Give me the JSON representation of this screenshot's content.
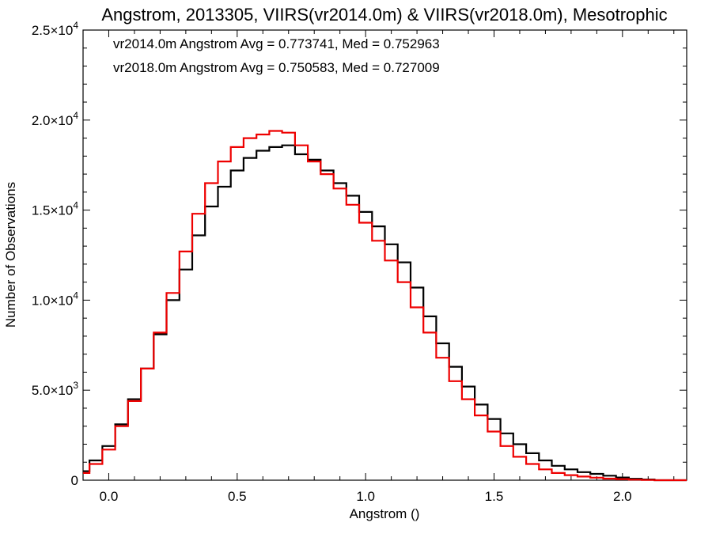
{
  "chart_data": {
    "type": "line",
    "title": "Angstrom, 2013305, VIIRS(vr2014.0m) & VIIRS(vr2018.0m), Mesotrophic",
    "xlabel": "Angstrom ()",
    "ylabel": "Number of Observations",
    "xlim": [
      -0.1,
      2.25
    ],
    "ylim": [
      0,
      25000
    ],
    "x_ticks": [
      0.0,
      0.5,
      1.0,
      1.5,
      2.0
    ],
    "x_tick_labels": [
      "0.0",
      "0.5",
      "1.0",
      "1.5",
      "2.0"
    ],
    "y_ticks": [
      0,
      5000,
      10000,
      15000,
      20000,
      25000
    ],
    "y_tick_labels": [
      {
        "mantissa": "0",
        "exp": ""
      },
      {
        "mantissa": "5.0×10",
        "exp": "3"
      },
      {
        "mantissa": "1.0×10",
        "exp": "4"
      },
      {
        "mantissa": "1.5×10",
        "exp": "4"
      },
      {
        "mantissa": "2.0×10",
        "exp": "4"
      },
      {
        "mantissa": "2.5×10",
        "exp": "4"
      }
    ],
    "grid": false,
    "legend_position": "top-left",
    "series": [
      {
        "name": "vr2014.0m",
        "legend_text": "vr2014.0m Angstrom Avg = 0.773741, Med = 0.752963",
        "color": "#000000",
        "x": [
          -0.1,
          -0.05,
          0.0,
          0.05,
          0.1,
          0.15,
          0.2,
          0.25,
          0.3,
          0.35,
          0.4,
          0.45,
          0.5,
          0.55,
          0.6,
          0.65,
          0.7,
          0.75,
          0.8,
          0.85,
          0.9,
          0.95,
          1.0,
          1.05,
          1.1,
          1.15,
          1.2,
          1.25,
          1.3,
          1.35,
          1.4,
          1.45,
          1.5,
          1.55,
          1.6,
          1.65,
          1.7,
          1.75,
          1.8,
          1.85,
          1.9,
          1.95,
          2.0,
          2.05,
          2.1,
          2.15,
          2.2,
          2.25
        ],
        "y": [
          500,
          1100,
          1900,
          3100,
          4500,
          6200,
          8100,
          10000,
          11700,
          13600,
          15200,
          16300,
          17200,
          17900,
          18300,
          18500,
          18600,
          18100,
          17800,
          17200,
          16500,
          15800,
          14900,
          14100,
          13100,
          12100,
          10700,
          9100,
          7600,
          6300,
          5200,
          4200,
          3400,
          2600,
          2000,
          1500,
          1100,
          800,
          600,
          450,
          350,
          250,
          150,
          80,
          40,
          0,
          0,
          0
        ]
      },
      {
        "name": "vr2018.0m",
        "legend_text": "vr2018.0m Angstrom Avg = 0.750583, Med = 0.727009",
        "color": "#ee0000",
        "x": [
          -0.1,
          -0.05,
          0.0,
          0.05,
          0.1,
          0.15,
          0.2,
          0.25,
          0.3,
          0.35,
          0.4,
          0.45,
          0.5,
          0.55,
          0.6,
          0.65,
          0.7,
          0.75,
          0.8,
          0.85,
          0.9,
          0.95,
          1.0,
          1.05,
          1.1,
          1.15,
          1.2,
          1.25,
          1.3,
          1.35,
          1.4,
          1.45,
          1.5,
          1.55,
          1.6,
          1.65,
          1.7,
          1.75,
          1.8,
          1.85,
          1.9,
          1.95,
          2.0,
          2.05,
          2.1,
          2.15,
          2.2,
          2.25
        ],
        "y": [
          400,
          900,
          1700,
          3000,
          4400,
          6200,
          8200,
          10400,
          12700,
          14800,
          16500,
          17700,
          18500,
          19000,
          19200,
          19400,
          19300,
          18600,
          17700,
          17000,
          16200,
          15300,
          14300,
          13300,
          12200,
          11000,
          9600,
          8200,
          6800,
          5500,
          4500,
          3600,
          2700,
          1900,
          1300,
          900,
          600,
          400,
          280,
          200,
          140,
          90,
          60,
          30,
          15,
          0,
          0,
          0
        ]
      }
    ]
  }
}
